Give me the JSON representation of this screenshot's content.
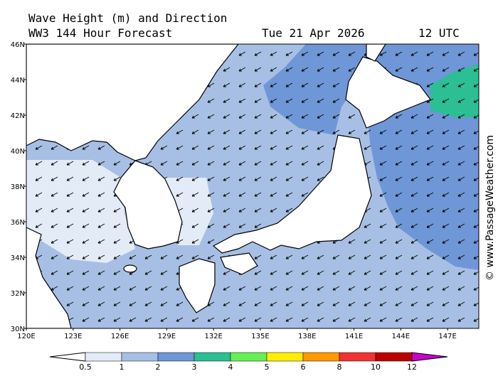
{
  "header": {
    "title": "Wave Height (m) and Direction",
    "subtitle": "WW3 144 Hour Forecast",
    "date": "Tue 21 Apr 2026",
    "time": "12 UTC"
  },
  "map": {
    "lon_ticks": [
      {
        "value": 120,
        "label": "120E"
      },
      {
        "value": 123,
        "label": "123E"
      },
      {
        "value": 126,
        "label": "126E"
      },
      {
        "value": 129,
        "label": "129E"
      },
      {
        "value": 132,
        "label": "132E"
      },
      {
        "value": 135,
        "label": "135E"
      },
      {
        "value": 138,
        "label": "138E"
      },
      {
        "value": 141,
        "label": "141E"
      },
      {
        "value": 144,
        "label": "144E"
      },
      {
        "value": 147,
        "label": "147E"
      }
    ],
    "lat_ticks": [
      {
        "value": 46,
        "label": "46N"
      },
      {
        "value": 44,
        "label": "44N"
      },
      {
        "value": 42,
        "label": "42N"
      },
      {
        "value": 40,
        "label": "40N"
      },
      {
        "value": 38,
        "label": "38N"
      },
      {
        "value": 36,
        "label": "36N"
      },
      {
        "value": 34,
        "label": "34N"
      },
      {
        "value": 32,
        "label": "32N"
      },
      {
        "value": 30,
        "label": "30N"
      }
    ],
    "lonlim": [
      120,
      149
    ],
    "latlim": [
      30,
      46
    ]
  },
  "legend": {
    "levels": [
      0.5,
      1,
      2,
      3,
      4,
      5,
      6,
      8,
      10,
      12
    ],
    "colors": [
      "#ffffff",
      "#e3ebf6",
      "#a7bfe4",
      "#6f96d6",
      "#2bbf93",
      "#66ee55",
      "#ffee00",
      "#ff9900",
      "#ee3333",
      "#bb0000",
      "#cc00cc"
    ]
  },
  "watermark": "© www.PassageWeather.com"
}
